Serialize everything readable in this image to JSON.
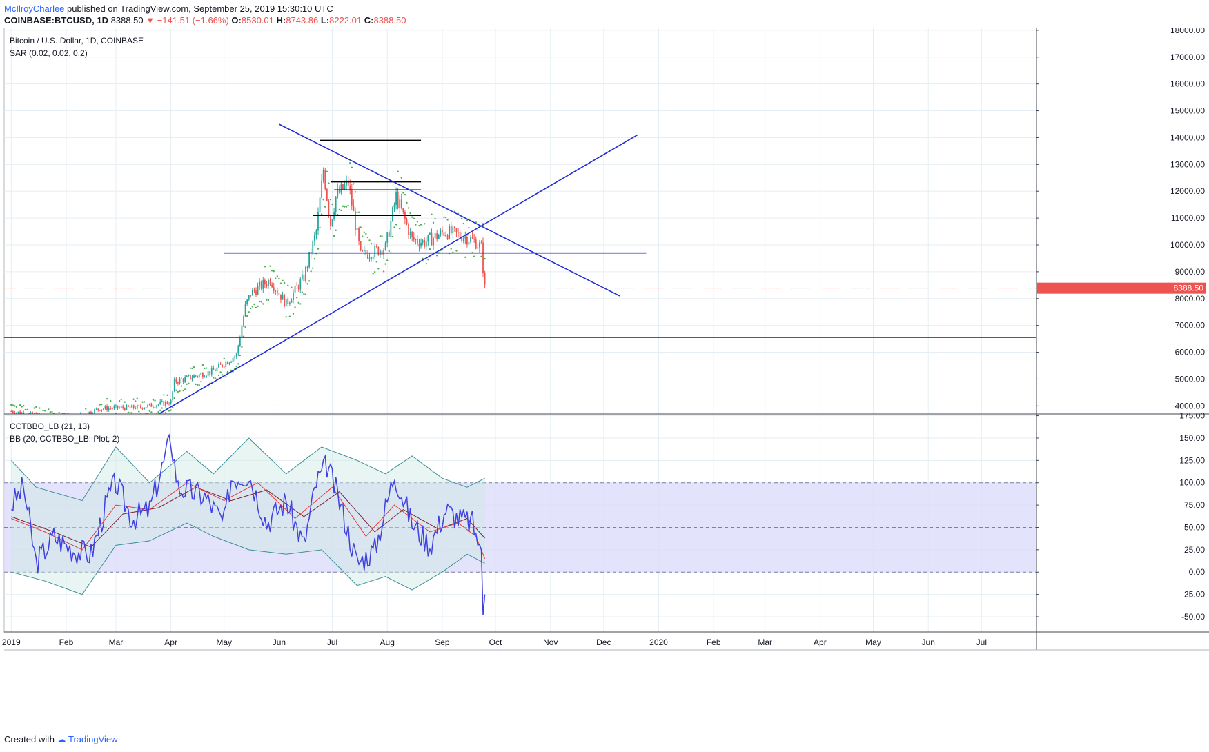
{
  "header": {
    "author": "McIlroyCharlee",
    "published_text": "published on TradingView.com, September 25, 2019 15:30:10 UTC",
    "symbol": "COINBASE:BTCUSD, 1D",
    "last": "8388.50",
    "change_arrow": "▼",
    "change": "−141.51 (−1.66%)",
    "o_label": "O:",
    "o_val": "8530.01",
    "h_label": "H:",
    "h_val": "8743.86",
    "l_label": "L:",
    "l_val": "8222.01",
    "c_label": "C:",
    "c_val": "8388.50"
  },
  "footer": {
    "created_with": "Created with",
    "brand": "TradingView"
  },
  "colors": {
    "up": "#26a69a",
    "down": "#ef5350",
    "sar": "#4caf50",
    "trendline": "#1f2bd6",
    "support": "#e00000",
    "osc": "#4040e0",
    "band": "#3b8f96",
    "ma_red": "#e53935",
    "ma_dark": "#7a2330",
    "range_fill": "#dcdcfa",
    "band_fill": "#cce8e3"
  },
  "chart_data": [
    {
      "type": "candlestick",
      "title": "Bitcoin / U.S. Dollar, 1D, COINBASE",
      "indicator": "SAR (0.02, 0.02, 0.2)",
      "last_price_label": "8388.50",
      "y_ticks": [
        "18000.00",
        "17000.00",
        "16000.00",
        "15000.00",
        "14000.00",
        "13000.00",
        "12000.00",
        "11000.00",
        "10000.00",
        "9000.00",
        "8000.00",
        "7000.00",
        "6000.00",
        "5000.00",
        "4000.00"
      ],
      "ylim": [
        3700,
        18100
      ],
      "x_ticks": [
        "2019",
        "Feb",
        "Mar",
        "Apr",
        "May",
        "Jun",
        "Jul",
        "Aug",
        "Sep",
        "Oct",
        "Nov",
        "Dec",
        "2020",
        "Feb",
        "Mar",
        "Apr",
        "May",
        "Jun",
        "Jul"
      ],
      "price_path": [
        [
          "2019-01-01",
          3800
        ],
        [
          "2019-01-10",
          3700
        ],
        [
          "2019-02-01",
          3450
        ],
        [
          "2019-02-20",
          3900
        ],
        [
          "2019-03-15",
          3950
        ],
        [
          "2019-04-01",
          4150
        ],
        [
          "2019-04-03",
          4900
        ],
        [
          "2019-04-25",
          5300
        ],
        [
          "2019-05-08",
          5900
        ],
        [
          "2019-05-13",
          7700
        ],
        [
          "2019-05-16",
          8200
        ],
        [
          "2019-05-27",
          8700
        ],
        [
          "2019-06-05",
          7800
        ],
        [
          "2019-06-15",
          8800
        ],
        [
          "2019-06-22",
          10500
        ],
        [
          "2019-06-26",
          12800
        ],
        [
          "2019-06-30",
          10800
        ],
        [
          "2019-07-03",
          11800
        ],
        [
          "2019-07-10",
          12300
        ],
        [
          "2019-07-17",
          9600
        ],
        [
          "2019-07-31",
          9900
        ],
        [
          "2019-08-06",
          11800
        ],
        [
          "2019-08-15",
          10200
        ],
        [
          "2019-08-22",
          10100
        ],
        [
          "2019-09-03",
          10500
        ],
        [
          "2019-09-14",
          10300
        ],
        [
          "2019-09-20",
          10100
        ],
        [
          "2019-09-23",
          9900
        ],
        [
          "2019-09-25",
          8388.5
        ]
      ],
      "trendlines": [
        {
          "from": [
            "2019-06-01",
            14500
          ],
          "to": [
            "2019-12-10",
            8100
          ]
        },
        {
          "from": [
            "2019-03-20",
            3500
          ],
          "to": [
            "2019-12-20",
            14100
          ]
        },
        {
          "from": [
            "2019-05-01",
            9700
          ],
          "to": [
            "2019-12-25",
            9700
          ]
        }
      ],
      "support_line": 6550,
      "resistance_segments": [
        {
          "from": "2019-06-24",
          "to": "2019-08-20",
          "y": 13900
        },
        {
          "from": "2019-06-30",
          "to": "2019-08-20",
          "y": 12350
        },
        {
          "from": "2019-07-02",
          "to": "2019-08-20",
          "y": 12050
        },
        {
          "from": "2019-06-20",
          "to": "2019-08-20",
          "y": 11100
        }
      ],
      "last_price": 8388.5
    },
    {
      "type": "line",
      "indicator": "CCTBBO_LB (21, 13)",
      "overlay": "BB (20, CCTBBO_LB: Plot, 2)",
      "y_ticks": [
        "175.00",
        "150.00",
        "125.00",
        "100.00",
        "75.00",
        "50.00",
        "25.00",
        "0.00",
        "-25.00",
        "-50.00"
      ],
      "ylim": [
        -67,
        177
      ],
      "levels": [
        100,
        50,
        0
      ],
      "osc_path": [
        [
          "2019-01-01",
          75
        ],
        [
          "2019-01-08",
          95
        ],
        [
          "2019-01-15",
          10
        ],
        [
          "2019-01-25",
          40
        ],
        [
          "2019-02-05",
          25
        ],
        [
          "2019-02-15",
          20
        ],
        [
          "2019-02-25",
          85
        ],
        [
          "2019-03-01",
          100
        ],
        [
          "2019-03-10",
          60
        ],
        [
          "2019-03-20",
          70
        ],
        [
          "2019-04-01",
          150
        ],
        [
          "2019-04-05",
          95
        ],
        [
          "2019-04-20",
          85
        ],
        [
          "2019-05-01",
          55
        ],
        [
          "2019-05-05",
          105
        ],
        [
          "2019-05-15",
          110
        ],
        [
          "2019-05-25",
          55
        ],
        [
          "2019-06-05",
          80
        ],
        [
          "2019-06-15",
          30
        ],
        [
          "2019-06-22",
          100
        ],
        [
          "2019-06-28",
          120
        ],
        [
          "2019-07-05",
          80
        ],
        [
          "2019-07-15",
          10
        ],
        [
          "2019-07-25",
          25
        ],
        [
          "2019-08-05",
          110
        ],
        [
          "2019-08-15",
          55
        ],
        [
          "2019-08-25",
          30
        ],
        [
          "2019-09-03",
          70
        ],
        [
          "2019-09-10",
          60
        ],
        [
          "2019-09-18",
          55
        ],
        [
          "2019-09-23",
          25
        ],
        [
          "2019-09-24",
          -48
        ],
        [
          "2019-09-25",
          -25
        ]
      ],
      "ma_fast_path": [
        [
          "2019-01-01",
          60
        ],
        [
          "2019-01-20",
          45
        ],
        [
          "2019-02-10",
          25
        ],
        [
          "2019-03-01",
          75
        ],
        [
          "2019-03-20",
          70
        ],
        [
          "2019-04-10",
          100
        ],
        [
          "2019-05-01",
          80
        ],
        [
          "2019-05-20",
          100
        ],
        [
          "2019-06-10",
          60
        ],
        [
          "2019-07-01",
          95
        ],
        [
          "2019-07-20",
          40
        ],
        [
          "2019-08-05",
          75
        ],
        [
          "2019-08-25",
          45
        ],
        [
          "2019-09-10",
          55
        ],
        [
          "2019-09-20",
          40
        ],
        [
          "2019-09-25",
          15
        ]
      ],
      "ma_slow_path": [
        [
          "2019-01-01",
          62
        ],
        [
          "2019-01-25",
          45
        ],
        [
          "2019-02-15",
          28
        ],
        [
          "2019-03-05",
          65
        ],
        [
          "2019-03-25",
          72
        ],
        [
          "2019-04-15",
          95
        ],
        [
          "2019-05-05",
          80
        ],
        [
          "2019-05-25",
          92
        ],
        [
          "2019-06-15",
          62
        ],
        [
          "2019-07-05",
          90
        ],
        [
          "2019-07-25",
          45
        ],
        [
          "2019-08-10",
          70
        ],
        [
          "2019-08-30",
          48
        ],
        [
          "2019-09-15",
          60
        ],
        [
          "2019-09-25",
          38
        ]
      ],
      "band_upper": [
        [
          "2019-01-01",
          125
        ],
        [
          "2019-01-15",
          95
        ],
        [
          "2019-02-10",
          80
        ],
        [
          "2019-03-01",
          140
        ],
        [
          "2019-03-20",
          100
        ],
        [
          "2019-04-10",
          135
        ],
        [
          "2019-04-25",
          110
        ],
        [
          "2019-05-15",
          150
        ],
        [
          "2019-06-05",
          110
        ],
        [
          "2019-06-25",
          140
        ],
        [
          "2019-07-15",
          125
        ],
        [
          "2019-07-31",
          110
        ],
        [
          "2019-08-15",
          130
        ],
        [
          "2019-09-01",
          105
        ],
        [
          "2019-09-15",
          95
        ],
        [
          "2019-09-25",
          105
        ]
      ],
      "band_lower": [
        [
          "2019-01-01",
          0
        ],
        [
          "2019-01-20",
          -10
        ],
        [
          "2019-02-10",
          -25
        ],
        [
          "2019-03-01",
          30
        ],
        [
          "2019-03-20",
          35
        ],
        [
          "2019-04-10",
          55
        ],
        [
          "2019-04-25",
          40
        ],
        [
          "2019-05-15",
          25
        ],
        [
          "2019-06-05",
          20
        ],
        [
          "2019-06-25",
          25
        ],
        [
          "2019-07-15",
          -15
        ],
        [
          "2019-07-31",
          -5
        ],
        [
          "2019-08-15",
          -20
        ],
        [
          "2019-09-01",
          0
        ],
        [
          "2019-09-15",
          20
        ],
        [
          "2019-09-25",
          10
        ]
      ]
    }
  ]
}
